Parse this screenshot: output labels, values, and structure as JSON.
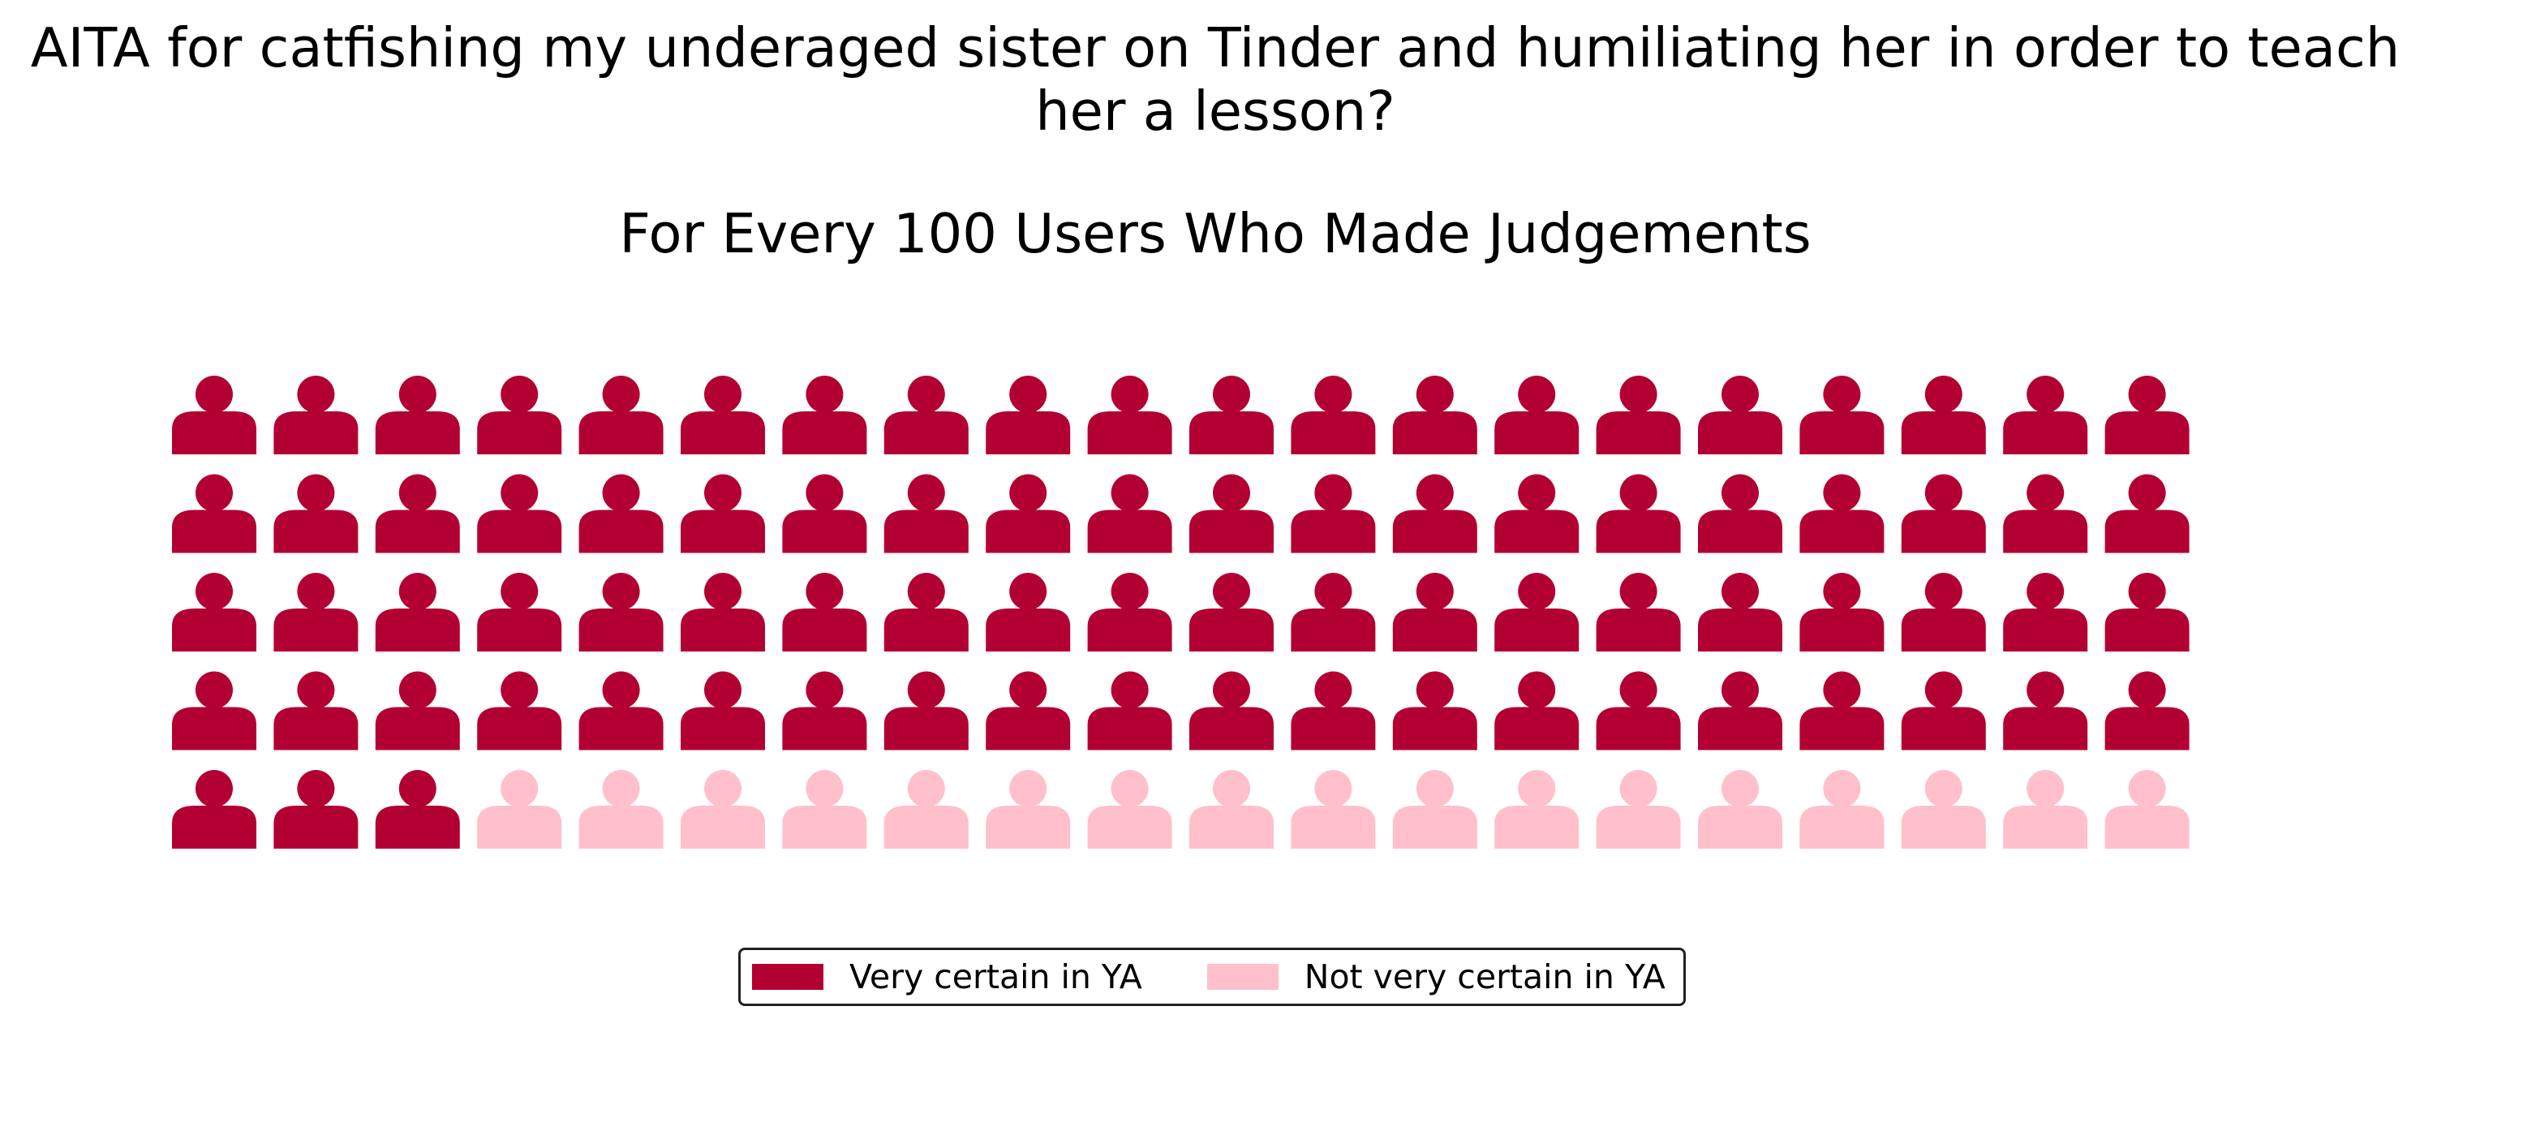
{
  "chart_data": {
    "type": "waffle",
    "title": "AITA for catfishing my underaged sister on Tinder and humiliating her in order to teach her a lesson?",
    "subtitle": "For Every 100 Users Who Made Judgements",
    "rows": 5,
    "columns": 20,
    "fill_order": "row-major",
    "icon": "person-icon",
    "series": [
      {
        "name": "Very certain in YA",
        "value": 83,
        "color": "#b30033"
      },
      {
        "name": "Not very certain in YA",
        "value": 17,
        "color": "#ffc0cb"
      }
    ],
    "legend_position": "bottom-center"
  }
}
